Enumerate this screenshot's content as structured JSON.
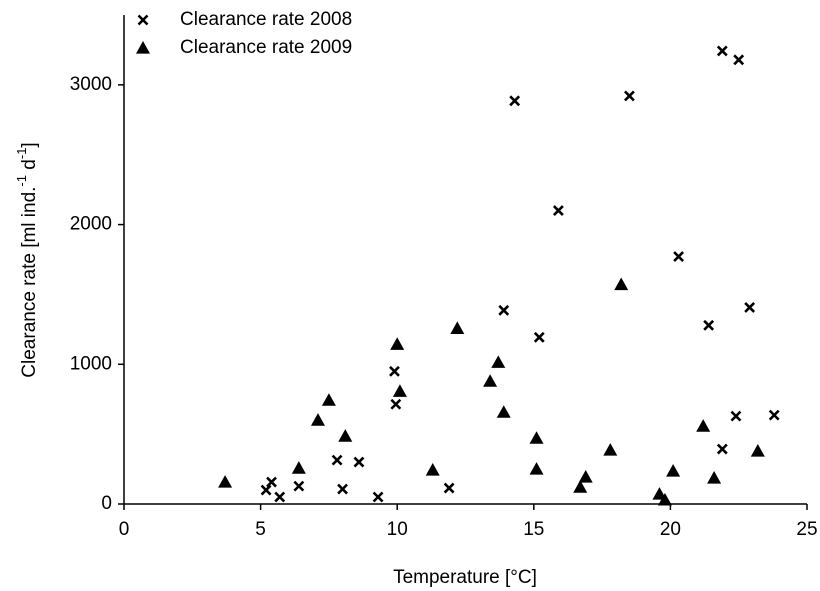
{
  "chart_data": {
    "type": "scatter",
    "xlabel": "Temperature [°C]",
    "ylabel": [
      "Clearance rate [ml ind.",
      "-1",
      " d",
      "-1",
      "]"
    ],
    "xlim": [
      0,
      25
    ],
    "xticks": [
      0,
      5,
      10,
      15,
      20,
      25
    ],
    "ylim": [
      0,
      3500
    ],
    "yticks": [
      0,
      1000,
      2000,
      3000
    ],
    "grid": false,
    "legend": "top-left",
    "series": [
      {
        "name": "Clearance rate  2008",
        "color": "#000000",
        "marker": "x",
        "x": [
          5.2,
          5.4,
          5.7,
          6.4,
          7.8,
          8.0,
          8.6,
          9.3,
          9.9,
          9.95,
          11.9,
          13.9,
          14.3,
          15.2,
          15.9,
          18.5,
          20.3,
          21.4,
          21.9,
          22.5,
          21.9,
          22.4,
          22.9,
          23.8
        ],
        "values": [
          100,
          157,
          50,
          128,
          314,
          107,
          300,
          50,
          950,
          714,
          114,
          1386,
          2886,
          1193,
          2100,
          2921,
          1771,
          1279,
          3243,
          3179,
          393,
          629,
          1407,
          636
        ]
      },
      {
        "name": "Clearance rate  2009",
        "color": "#000000",
        "marker": "triangle",
        "x": [
          3.7,
          6.4,
          7.1,
          7.5,
          8.1,
          10.0,
          10.1,
          11.3,
          12.2,
          13.4,
          13.7,
          13.9,
          15.1,
          15.1,
          16.7,
          16.9,
          17.8,
          18.2,
          19.6,
          19.8,
          20.1,
          21.2,
          21.6,
          23.2
        ],
        "values": [
          157,
          257,
          600,
          743,
          486,
          1143,
          807,
          243,
          1257,
          879,
          1014,
          657,
          471,
          250,
          121,
          193,
          386,
          1571,
          71,
          29,
          236,
          557,
          186,
          379
        ]
      }
    ]
  }
}
